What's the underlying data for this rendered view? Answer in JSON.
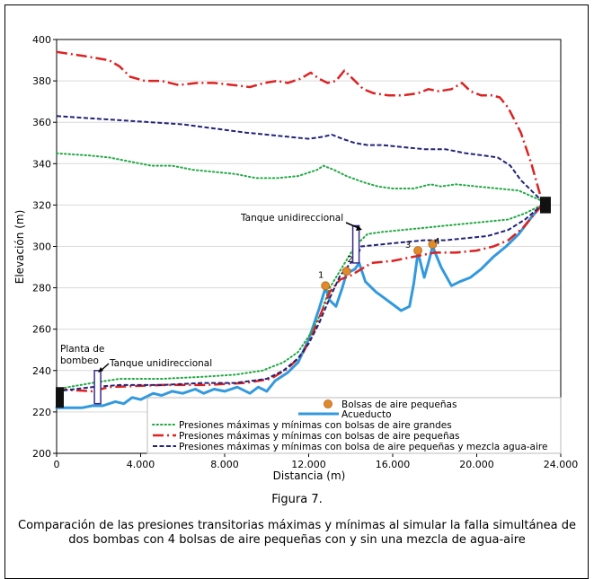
{
  "figure": {
    "label": "Figura 7.",
    "caption": "Comparación de las presiones transitorias máximas y mínimas al simular la falla simultánea de dos bombas con 4 bolsas de aire pequeñas con y sin una mezcla de agua-aire"
  },
  "chart_data": {
    "type": "line",
    "xlabel": "Distancia (m)",
    "ylabel": "Elevación (m)",
    "xlim": [
      0,
      24000
    ],
    "ylim": [
      200,
      400
    ],
    "xticks": [
      0,
      4000,
      8000,
      12000,
      16000,
      20000,
      24000
    ],
    "xtick_labels": [
      "0",
      "4.000",
      "8.000",
      "12.000",
      "16.000",
      "20.000",
      "24.000"
    ],
    "yticks": [
      200,
      220,
      240,
      260,
      280,
      300,
      320,
      340,
      360,
      380,
      400
    ],
    "grid": "horizontal",
    "legend_position": "bottom-right",
    "annotations": {
      "pump": "Planta de bombeo",
      "tank_left": "Tanque unidireccional",
      "tank_right": "Tanque unidireccional",
      "pocket_numbers": [
        "1",
        "2",
        "3",
        "4"
      ]
    },
    "colors": {
      "acueducto": "#3399dd",
      "green": "#22aa44",
      "red": "#dd2222",
      "navy": "#22227a",
      "pocket": "#e08a2a"
    },
    "air_pockets": {
      "name": "Bolsas de aire pequeñas",
      "points": [
        [
          12800,
          281
        ],
        [
          13800,
          288
        ],
        [
          17200,
          298
        ],
        [
          17900,
          301
        ]
      ]
    },
    "series": [
      {
        "name": "Acueducto",
        "style": "solid",
        "points": [
          [
            0,
            222
          ],
          [
            1200,
            222
          ],
          [
            1700,
            223
          ],
          [
            2200,
            223
          ],
          [
            2800,
            225
          ],
          [
            3200,
            224
          ],
          [
            3600,
            227
          ],
          [
            4000,
            226
          ],
          [
            4600,
            229
          ],
          [
            5000,
            228
          ],
          [
            5500,
            230
          ],
          [
            6000,
            229
          ],
          [
            6600,
            231
          ],
          [
            7000,
            229
          ],
          [
            7500,
            231
          ],
          [
            8000,
            230
          ],
          [
            8600,
            232
          ],
          [
            9200,
            229
          ],
          [
            9600,
            232
          ],
          [
            10000,
            230
          ],
          [
            10400,
            235
          ],
          [
            11000,
            239
          ],
          [
            11500,
            244
          ],
          [
            12000,
            255
          ],
          [
            12500,
            270
          ],
          [
            12800,
            280
          ],
          [
            13000,
            274
          ],
          [
            13300,
            271
          ],
          [
            13600,
            280
          ],
          [
            13800,
            287
          ],
          [
            14200,
            289
          ],
          [
            14400,
            292
          ],
          [
            14700,
            283
          ],
          [
            15200,
            278
          ],
          [
            15600,
            275
          ],
          [
            16000,
            272
          ],
          [
            16400,
            269
          ],
          [
            16800,
            271
          ],
          [
            17000,
            282
          ],
          [
            17200,
            297
          ],
          [
            17500,
            285
          ],
          [
            17700,
            292
          ],
          [
            17900,
            300
          ],
          [
            18300,
            290
          ],
          [
            18800,
            281
          ],
          [
            19200,
            283
          ],
          [
            19700,
            285
          ],
          [
            20200,
            289
          ],
          [
            20800,
            295
          ],
          [
            21400,
            300
          ],
          [
            22000,
            306
          ],
          [
            22600,
            314
          ],
          [
            23100,
            320
          ]
        ]
      },
      {
        "name": "Presiones máximas y mínimas con bolsas de aire grandes",
        "style": "dotted",
        "upper": [
          [
            0,
            345
          ],
          [
            1500,
            344
          ],
          [
            2500,
            343
          ],
          [
            3500,
            341
          ],
          [
            4500,
            339
          ],
          [
            5500,
            339
          ],
          [
            6500,
            337
          ],
          [
            7500,
            336
          ],
          [
            8500,
            335
          ],
          [
            9500,
            333
          ],
          [
            10500,
            333
          ],
          [
            11500,
            334
          ],
          [
            12400,
            337
          ],
          [
            12700,
            339
          ],
          [
            13200,
            337
          ],
          [
            13800,
            334
          ],
          [
            14600,
            331
          ],
          [
            15300,
            329
          ],
          [
            16000,
            328
          ],
          [
            17000,
            328
          ],
          [
            17800,
            330
          ],
          [
            18300,
            329
          ],
          [
            19000,
            330
          ],
          [
            20000,
            329
          ],
          [
            21000,
            328
          ],
          [
            22000,
            327
          ],
          [
            23100,
            322
          ]
        ],
        "lower": [
          [
            0,
            231
          ],
          [
            1700,
            234
          ],
          [
            3000,
            236
          ],
          [
            5000,
            236
          ],
          [
            7000,
            237
          ],
          [
            8500,
            238
          ],
          [
            9800,
            240
          ],
          [
            10800,
            244
          ],
          [
            11500,
            249
          ],
          [
            12100,
            258
          ],
          [
            12600,
            268
          ],
          [
            13000,
            280
          ],
          [
            13600,
            290
          ],
          [
            14200,
            300
          ],
          [
            14800,
            306
          ],
          [
            15500,
            307
          ],
          [
            16500,
            308
          ],
          [
            17500,
            309
          ],
          [
            18500,
            310
          ],
          [
            19500,
            311
          ],
          [
            20500,
            312
          ],
          [
            21500,
            313
          ],
          [
            22300,
            316
          ],
          [
            23100,
            320
          ]
        ]
      },
      {
        "name": "Presiones máximas y mínimas con bolsas de aire pequeñas",
        "style": "dash-dot",
        "upper": [
          [
            0,
            394
          ],
          [
            1300,
            392
          ],
          [
            2500,
            390
          ],
          [
            3000,
            387
          ],
          [
            3500,
            382
          ],
          [
            4200,
            380
          ],
          [
            5000,
            380
          ],
          [
            5800,
            378
          ],
          [
            6700,
            379
          ],
          [
            7500,
            379
          ],
          [
            8400,
            378
          ],
          [
            9200,
            377
          ],
          [
            9900,
            379
          ],
          [
            10500,
            380
          ],
          [
            11000,
            379
          ],
          [
            11600,
            381
          ],
          [
            12100,
            384
          ],
          [
            12500,
            381
          ],
          [
            12900,
            379
          ],
          [
            13300,
            380
          ],
          [
            13700,
            385
          ],
          [
            14100,
            381
          ],
          [
            14600,
            376
          ],
          [
            15100,
            374
          ],
          [
            15800,
            373
          ],
          [
            16500,
            373
          ],
          [
            17200,
            374
          ],
          [
            17700,
            376
          ],
          [
            18200,
            375
          ],
          [
            18800,
            376
          ],
          [
            19300,
            379
          ],
          [
            19700,
            375
          ],
          [
            20200,
            373
          ],
          [
            20700,
            373
          ],
          [
            21100,
            372
          ],
          [
            21500,
            367
          ],
          [
            22100,
            355
          ],
          [
            22600,
            340
          ],
          [
            23100,
            322
          ]
        ],
        "lower": [
          [
            0,
            231
          ],
          [
            1700,
            230
          ],
          [
            2500,
            232
          ],
          [
            5000,
            233
          ],
          [
            7000,
            233
          ],
          [
            9000,
            234
          ],
          [
            10200,
            236
          ],
          [
            11000,
            241
          ],
          [
            11700,
            248
          ],
          [
            12200,
            258
          ],
          [
            12600,
            268
          ],
          [
            13000,
            278
          ],
          [
            13500,
            284
          ],
          [
            14000,
            286
          ],
          [
            14500,
            289
          ],
          [
            15000,
            292
          ],
          [
            16000,
            293
          ],
          [
            17000,
            295
          ],
          [
            18000,
            297
          ],
          [
            19000,
            297
          ],
          [
            20000,
            298
          ],
          [
            20800,
            300
          ],
          [
            21500,
            303
          ],
          [
            22200,
            309
          ],
          [
            23100,
            320
          ]
        ]
      },
      {
        "name": "Presiones máximas y mínimas con bolsa de aire pequeñas y mezcla agua-aire",
        "style": "dashed",
        "upper": [
          [
            0,
            363
          ],
          [
            1500,
            362
          ],
          [
            3000,
            361
          ],
          [
            4500,
            360
          ],
          [
            6000,
            359
          ],
          [
            7500,
            357
          ],
          [
            9000,
            355
          ],
          [
            10000,
            354
          ],
          [
            11000,
            353
          ],
          [
            12000,
            352
          ],
          [
            12700,
            353
          ],
          [
            13100,
            354
          ],
          [
            13600,
            352
          ],
          [
            14200,
            350
          ],
          [
            14800,
            349
          ],
          [
            15500,
            349
          ],
          [
            16500,
            348
          ],
          [
            17500,
            347
          ],
          [
            18500,
            347
          ],
          [
            19500,
            345
          ],
          [
            20300,
            344
          ],
          [
            21000,
            343
          ],
          [
            21600,
            339
          ],
          [
            22100,
            332
          ],
          [
            22600,
            327
          ],
          [
            23100,
            322
          ]
        ],
        "lower": [
          [
            0,
            230
          ],
          [
            1700,
            232
          ],
          [
            3000,
            233
          ],
          [
            5000,
            233
          ],
          [
            7000,
            234
          ],
          [
            8500,
            234
          ],
          [
            10000,
            236
          ],
          [
            10800,
            240
          ],
          [
            11500,
            246
          ],
          [
            12000,
            253
          ],
          [
            12500,
            263
          ],
          [
            13000,
            275
          ],
          [
            13500,
            286
          ],
          [
            14000,
            292
          ],
          [
            14300,
            295
          ],
          [
            14500,
            300
          ],
          [
            15500,
            301
          ],
          [
            16500,
            302
          ],
          [
            17500,
            303
          ],
          [
            18500,
            303
          ],
          [
            19500,
            304
          ],
          [
            20500,
            305
          ],
          [
            21500,
            308
          ],
          [
            22300,
            313
          ],
          [
            23100,
            320
          ]
        ]
      }
    ]
  }
}
